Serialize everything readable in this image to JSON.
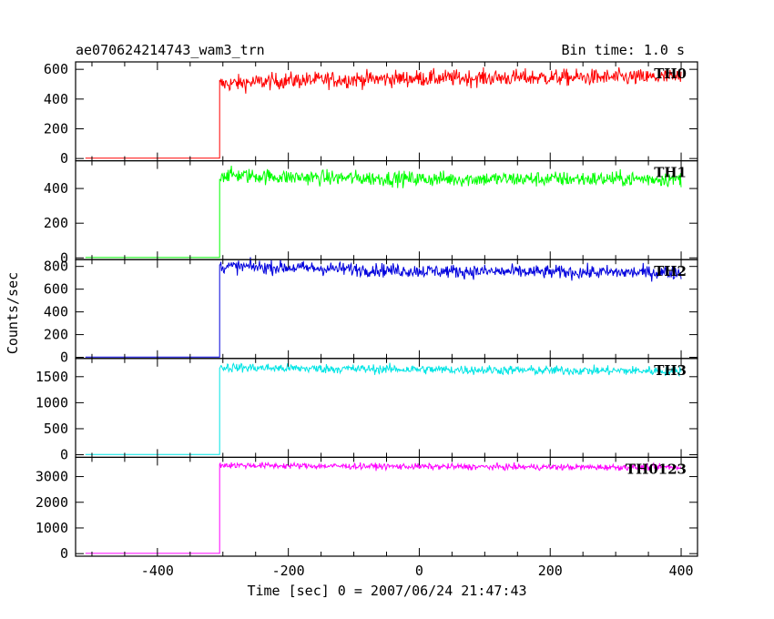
{
  "chart_data": {
    "type": "line",
    "title": "ae070624214743_wam3_trn",
    "subtitle": "Bin time: 1.0 s",
    "xlabel": "Time [sec] 0 = 2007/06/24 21:47:43",
    "ylabel": "Counts/sec",
    "xlim": [
      -525,
      425
    ],
    "x_ticks": [
      -400,
      -200,
      0,
      200,
      400
    ],
    "step_time": -305,
    "panels": [
      {
        "name": "TH0",
        "color": "#ff0000",
        "ylim": [
          -15,
          650
        ],
        "y_ticks": [
          0,
          200,
          400,
          600
        ],
        "pre_level": 2,
        "x_start": -510,
        "x_end": 400,
        "post_levels": [
          [
            -305,
            500
          ],
          [
            -200,
            525
          ],
          [
            0,
            540
          ],
          [
            200,
            545
          ],
          [
            400,
            545
          ]
        ],
        "noise": 28
      },
      {
        "name": "TH1",
        "color": "#00ff00",
        "ylim": [
          -10,
          560
        ],
        "y_ticks": [
          0,
          200,
          400
        ],
        "pre_level": 2,
        "x_start": -510,
        "x_end": 400,
        "post_levels": [
          [
            -305,
            480
          ],
          [
            -200,
            465
          ],
          [
            0,
            455
          ],
          [
            200,
            455
          ],
          [
            400,
            455
          ]
        ],
        "noise": 22
      },
      {
        "name": "TH2",
        "color": "#0000dd",
        "ylim": [
          -10,
          860
        ],
        "y_ticks": [
          0,
          200,
          400,
          600,
          800
        ],
        "pre_level": 3,
        "x_start": -510,
        "x_end": 400,
        "post_levels": [
          [
            -305,
            800
          ],
          [
            -200,
            790
          ],
          [
            0,
            760
          ],
          [
            200,
            750
          ],
          [
            400,
            745
          ]
        ],
        "noise": 30
      },
      {
        "name": "TH3",
        "color": "#00e5e5",
        "ylim": [
          -50,
          1850
        ],
        "y_ticks": [
          0,
          500,
          1000,
          1500
        ],
        "pre_level": 5,
        "x_start": -510,
        "x_end": 400,
        "post_levels": [
          [
            -305,
            1680
          ],
          [
            -200,
            1660
          ],
          [
            0,
            1640
          ],
          [
            200,
            1620
          ],
          [
            400,
            1610
          ]
        ],
        "noise": 45
      },
      {
        "name": "TH0123",
        "color": "#ff00ff",
        "ylim": [
          -100,
          3750
        ],
        "y_ticks": [
          0,
          1000,
          2000,
          3000
        ],
        "pre_level": 10,
        "x_start": -510,
        "x_end": 400,
        "post_levels": [
          [
            -305,
            3450
          ],
          [
            -200,
            3420
          ],
          [
            0,
            3390
          ],
          [
            200,
            3370
          ],
          [
            400,
            3360
          ]
        ],
        "noise": 60
      }
    ]
  }
}
